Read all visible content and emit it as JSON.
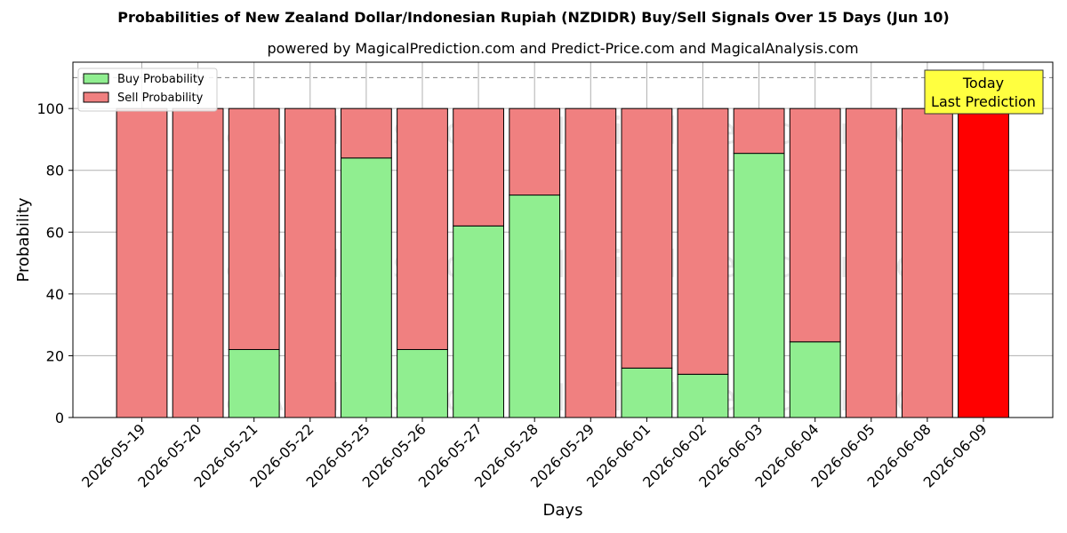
{
  "chart_data": {
    "type": "bar",
    "stacked": true,
    "title": "Probabilities of New Zealand Dollar/Indonesian Rupiah (NZDIDR) Buy/Sell Signals Over 15 Days (Jun 10)",
    "subtitle": "powered by MagicalPrediction.com and Predict-Price.com and MagicalAnalysis.com",
    "xlabel": "Days",
    "ylabel": "Probability",
    "ylim": [
      0,
      115
    ],
    "yticks": [
      0,
      20,
      40,
      60,
      80,
      100
    ],
    "grid": true,
    "legend_position": "top-left",
    "reference_line": 110,
    "categories": [
      "2026-05-19",
      "2026-05-20",
      "2026-05-21",
      "2026-05-22",
      "2026-05-25",
      "2026-05-26",
      "2026-05-27",
      "2026-05-28",
      "2026-05-29",
      "2026-06-01",
      "2026-06-02",
      "2026-06-03",
      "2026-06-04",
      "2026-06-05",
      "2026-06-08",
      "2026-06-09"
    ],
    "series": [
      {
        "name": "Buy Probability",
        "color": "#90ee90",
        "values": [
          0,
          0,
          22,
          0,
          84,
          22,
          62,
          72,
          0,
          16,
          14,
          85.5,
          24.5,
          0,
          0,
          0
        ]
      },
      {
        "name": "Sell Probability",
        "color": "#f08080",
        "values": [
          100,
          100,
          78,
          100,
          16,
          78,
          38,
          28,
          100,
          84,
          86,
          14.5,
          75.5,
          100,
          100,
          100
        ]
      }
    ],
    "highlight": {
      "index": 15,
      "color": "#ff0000"
    },
    "annotation": {
      "line1": "Today",
      "line2": "Last Prediction",
      "background": "#ffff40"
    },
    "watermarks": [
      "MagicalAnalysis.com",
      "MagicalPrediction.com"
    ]
  }
}
